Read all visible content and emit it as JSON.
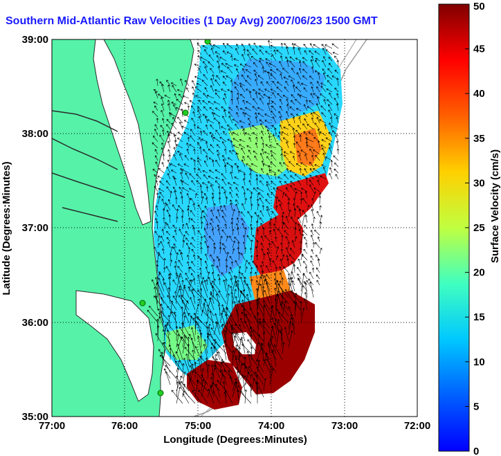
{
  "title": "Southern Mid-Atlantic Raw Velocities (1 Day Avg) 2007/06/23 1500 GMT",
  "map": {
    "x_axis": {
      "label": "Longitude (Degrees:Minutes)",
      "ticks": [
        "77:00",
        "76:00",
        "75:00",
        "74:00",
        "73:00",
        "72:00"
      ]
    },
    "y_axis": {
      "label": "Latitude (Degrees:Minutes)",
      "ticks": [
        "39:00",
        "38:00",
        "37:00",
        "36:00",
        "35:00"
      ]
    },
    "grid": "dotted",
    "colors": {
      "land": "#55f2a8",
      "water": "#ffffff",
      "coastline": "#2a2a2a",
      "bathymetry": "#9a9a9a",
      "stations": "#22cc22",
      "vectors": "#000000"
    },
    "stations_count": 4
  },
  "colorbar": {
    "label": "Surface Velocity (cm/s)",
    "min": 0,
    "max": 50,
    "ticks": [
      "50",
      "45",
      "40",
      "35",
      "30",
      "25",
      "20",
      "15",
      "10",
      "5",
      "0"
    ],
    "colormap": "jet"
  }
}
